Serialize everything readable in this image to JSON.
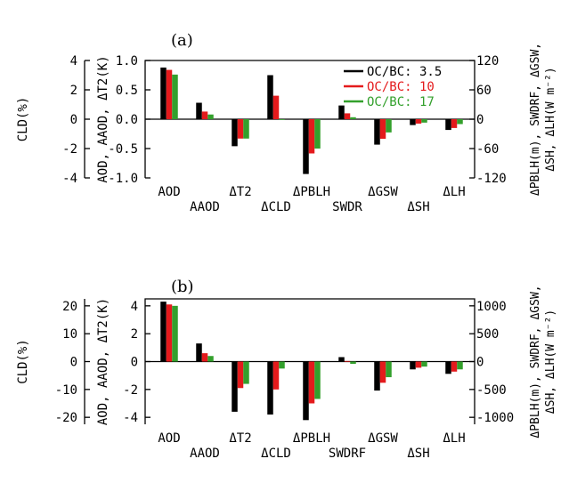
{
  "colors": {
    "black": "#000000",
    "red": "#e41a1c",
    "green": "#33a02c"
  },
  "chart_data": [
    {
      "type": "bar",
      "title": "(a)",
      "categories": [
        "AOD",
        "AAOD",
        "ΔT2",
        "ΔCLD",
        "ΔPBLH",
        "SWDR",
        "ΔGSW",
        "ΔSH",
        "ΔLH"
      ],
      "category_axis": [
        "left",
        "left",
        "left",
        "left_cld",
        "right",
        "right",
        "right",
        "right",
        "right"
      ],
      "series": [
        {
          "name": "OC/BC: 3.5",
          "values": [
            0.88,
            0.28,
            -0.46,
            3.0,
            -112,
            28,
            -52,
            -12,
            -22
          ]
        },
        {
          "name": "OC/BC: 10",
          "values": [
            0.84,
            0.13,
            -0.33,
            1.6,
            -70,
            12,
            -40,
            -9,
            -18
          ]
        },
        {
          "name": "OC/BC: 17",
          "values": [
            0.76,
            0.08,
            -0.33,
            0.0,
            -60,
            4,
            -27,
            -7,
            -10
          ]
        }
      ],
      "legend": {
        "position": "top-right",
        "labels": [
          "OC/BC: 3.5",
          "OC/BC: 10",
          "OC/BC: 17"
        ]
      },
      "y_left": {
        "label": "AOD, AAOD, ΔT2(K)",
        "ylim": [
          -1.0,
          1.0
        ],
        "ticks": [
          "1.0",
          "0.5",
          "0.0",
          "-0.5",
          "-1.0"
        ]
      },
      "y_cld": {
        "label": "CLD(%)",
        "ylim": [
          -4,
          4
        ],
        "ticks": [
          "4",
          "2",
          "0",
          "-2",
          "-4"
        ]
      },
      "y_right": {
        "label_line1": "ΔPBLH(m), SWDRF, ΔGSW,",
        "label_line2": "ΔSH, ΔLH(W m⁻²)",
        "ylim": [
          -120,
          120
        ],
        "ticks": [
          "120",
          "60",
          "0",
          "-60",
          "-120"
        ]
      }
    },
    {
      "type": "bar",
      "title": "(b)",
      "categories": [
        "AOD",
        "AAOD",
        "ΔT2",
        "ΔCLD",
        "ΔPBLH",
        "SWDRF",
        "ΔGSW",
        "ΔSH",
        "ΔLH"
      ],
      "category_axis": [
        "left",
        "left",
        "left",
        "left_cld",
        "right",
        "right",
        "right",
        "right",
        "right"
      ],
      "series": [
        {
          "name": "OC/BC: 3.5",
          "values": [
            4.3,
            1.3,
            -3.6,
            -19,
            -1050,
            80,
            -520,
            -140,
            -220
          ]
        },
        {
          "name": "OC/BC: 10",
          "values": [
            4.1,
            0.6,
            -1.9,
            -10,
            -750,
            10,
            -380,
            -110,
            -180
          ]
        },
        {
          "name": "OC/BC: 17",
          "values": [
            4.0,
            0.4,
            -1.6,
            -2.5,
            -670,
            -40,
            -280,
            -90,
            -140
          ]
        }
      ],
      "y_left": {
        "label": "AOD, AAOD, ΔT2(K)",
        "ylim": [
          -4.5,
          4.5
        ],
        "ticks": [
          "4",
          "2",
          "0",
          "-2",
          "-4"
        ]
      },
      "y_cld": {
        "label": "CLD(%)",
        "ylim": [
          -22.5,
          22.5
        ],
        "ticks": [
          "20",
          "10",
          "0",
          "-10",
          "-20"
        ]
      },
      "y_right": {
        "label_line1": "ΔPBLH(m), SWDRF, ΔGSW,",
        "label_line2": "ΔSH, ΔLH(W m⁻²)",
        "ylim": [
          -1125,
          1125
        ],
        "ticks": [
          "1000",
          "500",
          "0",
          "-500",
          "-1000"
        ]
      }
    }
  ]
}
